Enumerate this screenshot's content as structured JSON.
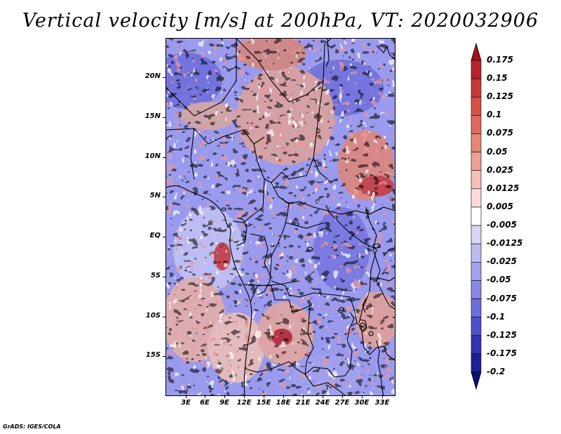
{
  "title": "Vertical velocity [m/s] at 200hPa, VT: 2020032906",
  "credit": "GrADS: IGES/COLA",
  "y_axis_labels": [
    "20N",
    "15N",
    "10N",
    "5N",
    "EQ",
    "5S",
    "10S",
    "15S"
  ],
  "x_axis_labels": [
    "3E",
    "6E",
    "9E",
    "12E",
    "15E",
    "18E",
    "21E",
    "24E",
    "27E",
    "30E",
    "33E"
  ],
  "colorbar": {
    "labels": [
      "0.175",
      "0.15",
      "0.125",
      "0.1",
      "0.075",
      "0.05",
      "0.025",
      "0.0125",
      "0.005",
      "-0.005",
      "-0.0125",
      "-0.025",
      "-0.05",
      "-0.075",
      "-0.1",
      "-0.125",
      "-0.175",
      "-0.2"
    ],
    "colors": [
      "#a0141e",
      "#b8242b",
      "#c93a38",
      "#d65048",
      "#df6a5f",
      "#e78579",
      "#eea196",
      "#f4c0b7",
      "#f9dcd5",
      "#ffffff",
      "#d6d6f7",
      "#bcbcf2",
      "#a2a2ee",
      "#8888e6",
      "#6e6edc",
      "#5050cc",
      "#3333b4",
      "#1e1e96",
      "#10107a"
    ]
  }
}
